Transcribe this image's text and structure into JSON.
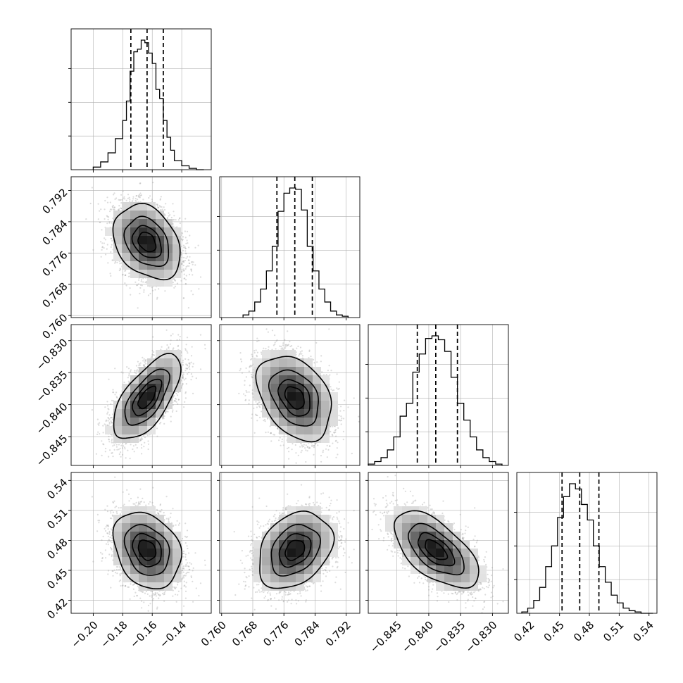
{
  "chart_data": {
    "type": "corner",
    "grid": true,
    "params": [
      {
        "range": [
          -0.215,
          -0.12
        ],
        "ticks": [
          -0.2,
          -0.18,
          -0.16,
          -0.14
        ],
        "tick_labels": [
          "−0.20",
          "−0.18",
          "−0.16",
          "−0.14"
        ],
        "quantiles": [
          -0.1745,
          -0.1635,
          -0.1525
        ],
        "median": -0.1635,
        "sigma": 0.011,
        "hist_edges": [
          -0.2,
          -0.195,
          -0.19,
          -0.185,
          -0.18,
          -0.1775,
          -0.175,
          -0.1725,
          -0.17,
          -0.1675,
          -0.165,
          -0.1625,
          -0.16,
          -0.1575,
          -0.155,
          -0.1525,
          -0.15,
          -0.1475,
          -0.145,
          -0.14,
          -0.135,
          -0.13,
          -0.125
        ],
        "hist_values": [
          0.02,
          0.06,
          0.13,
          0.24,
          0.38,
          0.53,
          0.76,
          0.91,
          0.93,
          1.0,
          0.98,
          0.9,
          0.82,
          0.62,
          0.55,
          0.38,
          0.25,
          0.15,
          0.07,
          0.03,
          0.01,
          0.0
        ]
      },
      {
        "range": [
          0.7595,
          0.7955
        ],
        "ticks": [
          0.76,
          0.768,
          0.776,
          0.784,
          0.792
        ],
        "tick_labels": [
          "0.760",
          "0.768",
          "0.776",
          "0.784",
          "0.792"
        ],
        "quantiles": [
          0.7742,
          0.7788,
          0.7833
        ],
        "median": 0.7788,
        "sigma": 0.0046,
        "hist_edges": [
          0.7655,
          0.767,
          0.7685,
          0.77,
          0.7715,
          0.773,
          0.7745,
          0.776,
          0.7775,
          0.779,
          0.7805,
          0.782,
          0.7835,
          0.785,
          0.7865,
          0.788,
          0.7895,
          0.791,
          0.7925
        ],
        "hist_values": [
          0.02,
          0.05,
          0.12,
          0.22,
          0.36,
          0.55,
          0.82,
          0.96,
          1.0,
          0.99,
          0.83,
          0.55,
          0.36,
          0.22,
          0.12,
          0.05,
          0.02,
          0.01
        ]
      },
      {
        "range": [
          -0.8495,
          -0.8275
        ],
        "ticks": [
          -0.845,
          -0.84,
          -0.835,
          -0.83
        ],
        "tick_labels": [
          "−0.845",
          "−0.840",
          "−0.835",
          "−0.830"
        ],
        "quantiles": [
          -0.8418,
          -0.8389,
          -0.8355
        ],
        "median": -0.8389,
        "sigma": 0.0032,
        "hist_edges": [
          -0.8495,
          -0.8485,
          -0.8475,
          -0.8465,
          -0.8455,
          -0.8445,
          -0.8435,
          -0.8425,
          -0.8415,
          -0.8405,
          -0.8395,
          -0.8385,
          -0.8375,
          -0.8365,
          -0.8355,
          -0.8345,
          -0.8335,
          -0.8325,
          -0.8315,
          -0.8305,
          -0.8295,
          -0.8285
        ],
        "hist_values": [
          0.01,
          0.03,
          0.06,
          0.12,
          0.22,
          0.38,
          0.48,
          0.72,
          0.86,
          0.98,
          1.0,
          0.97,
          0.88,
          0.68,
          0.48,
          0.35,
          0.22,
          0.12,
          0.06,
          0.03,
          0.01
        ]
      },
      {
        "range": [
          0.407,
          0.548
        ],
        "ticks": [
          0.42,
          0.45,
          0.48,
          0.51,
          0.54
        ],
        "tick_labels": [
          "0.42",
          "0.45",
          "0.48",
          "0.51",
          "0.54"
        ],
        "quantiles": [
          0.4525,
          0.4703,
          0.4896
        ],
        "median": 0.4703,
        "sigma": 0.0185,
        "hist_edges": [
          0.412,
          0.418,
          0.424,
          0.43,
          0.436,
          0.442,
          0.448,
          0.454,
          0.46,
          0.466,
          0.472,
          0.478,
          0.484,
          0.49,
          0.496,
          0.502,
          0.508,
          0.514,
          0.52,
          0.526,
          0.532,
          0.538,
          0.544
        ],
        "hist_values": [
          0.01,
          0.04,
          0.1,
          0.2,
          0.36,
          0.52,
          0.74,
          0.9,
          1.0,
          0.96,
          0.84,
          0.72,
          0.52,
          0.36,
          0.24,
          0.14,
          0.08,
          0.04,
          0.02,
          0.01,
          0.0,
          0.0
        ]
      }
    ],
    "pairs": [
      {
        "row": 1,
        "col": 0,
        "corr": -0.3
      },
      {
        "row": 2,
        "col": 0,
        "corr": 0.65
      },
      {
        "row": 2,
        "col": 1,
        "corr": -0.35
      },
      {
        "row": 3,
        "col": 0,
        "corr": -0.25
      },
      {
        "row": 3,
        "col": 1,
        "corr": 0.3
      },
      {
        "row": 3,
        "col": 2,
        "corr": -0.6
      }
    ],
    "contour_sigmas": [
      0.5,
      1.0,
      1.5,
      2.0
    ],
    "colors": {
      "line": "#000000",
      "points": "#9a9a9a",
      "grid": "#b0b0b0"
    }
  }
}
